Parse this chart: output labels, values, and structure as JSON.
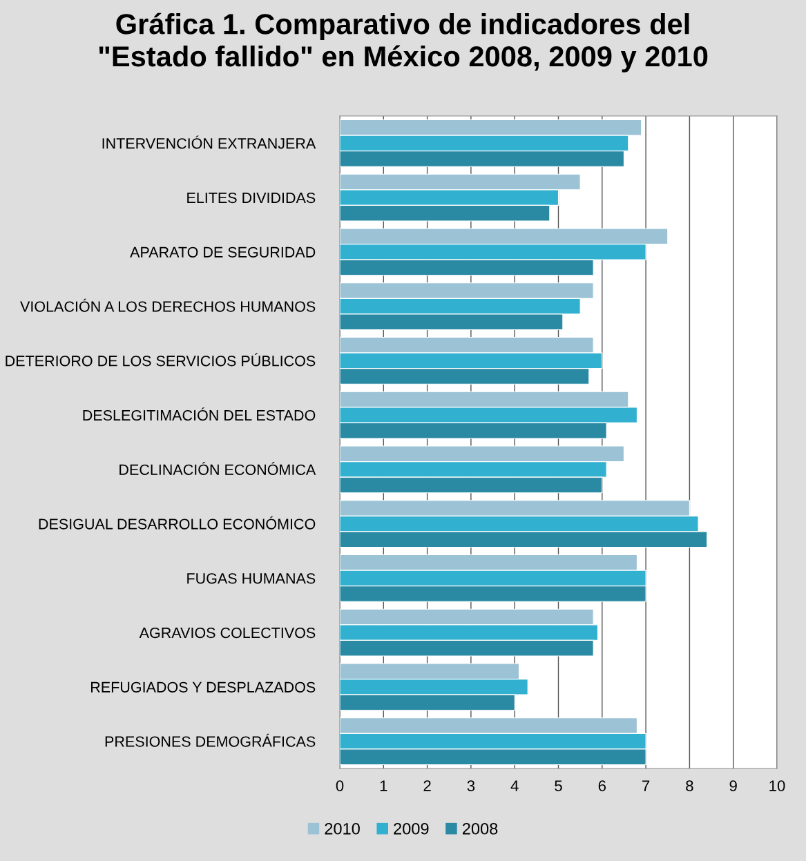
{
  "chart_data": {
    "type": "bar",
    "orientation": "horizontal",
    "title": "Gráfica 1. Comparativo de indicadores del\n\"Estado fallido\" en México 2008, 2009 y 2010",
    "categories": [
      "INTERVENCIÓN EXTRANJERA",
      "ELITES DIVIDIDAS",
      "APARATO DE SEGURIDAD",
      "VIOLACIÓN A LOS DERECHOS HUMANOS",
      "DETERIORO DE LOS SERVICIOS PÚBLICOS",
      "DESLEGITIMACIÓN DEL ESTADO",
      "DECLINACIÓN ECONÓMICA",
      "DESIGUAL DESARROLLO ECONÓMICO",
      "FUGAS HUMANAS",
      "AGRAVIOS COLECTIVOS",
      "REFUGIADOS Y DESPLAZADOS",
      "PRESIONES DEMOGRÁFICAS"
    ],
    "series": [
      {
        "name": "2010",
        "color": "#9cc3d5",
        "values": [
          6.9,
          5.5,
          7.5,
          5.8,
          5.8,
          6.6,
          6.5,
          8.0,
          6.8,
          5.8,
          4.1,
          6.8
        ]
      },
      {
        "name": "2009",
        "color": "#31b0d0",
        "values": [
          6.6,
          5.0,
          7.0,
          5.5,
          6.0,
          6.8,
          6.1,
          8.2,
          7.0,
          5.9,
          4.3,
          7.0
        ]
      },
      {
        "name": "2008",
        "color": "#2a8aa3",
        "values": [
          6.5,
          4.8,
          5.8,
          5.1,
          5.7,
          6.1,
          6.0,
          8.4,
          7.0,
          5.8,
          4.0,
          7.0
        ]
      }
    ],
    "xlim": [
      0,
      10
    ],
    "xticks": [
      0,
      1,
      2,
      3,
      4,
      5,
      6,
      7,
      8,
      9,
      10
    ],
    "grid": "x",
    "legend": "bottom"
  }
}
